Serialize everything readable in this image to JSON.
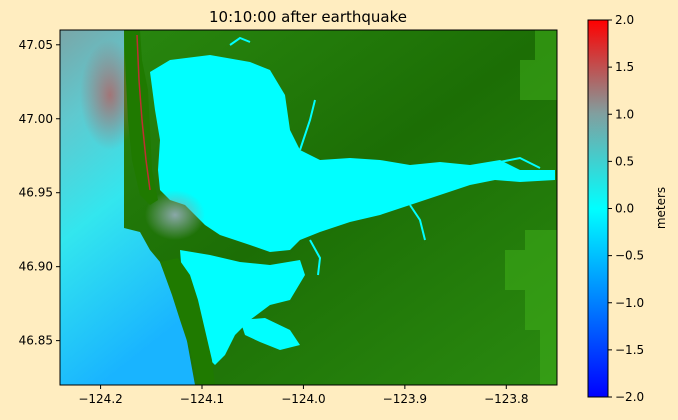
{
  "figure": {
    "title": "10:10:00 after earthquake",
    "background_color": "#ffedc0"
  },
  "map": {
    "x_ticks": [
      {
        "value": -124.2,
        "label": "−124.2"
      },
      {
        "value": -124.1,
        "label": "−124.1"
      },
      {
        "value": -124.0,
        "label": "−124.0"
      },
      {
        "value": -123.9,
        "label": "−123.9"
      },
      {
        "value": -123.8,
        "label": "−123.8"
      }
    ],
    "y_ticks": [
      {
        "value": 47.05,
        "label": "47.05"
      },
      {
        "value": 47.0,
        "label": "47.00"
      },
      {
        "value": 46.95,
        "label": "46.95"
      },
      {
        "value": 46.9,
        "label": "46.90"
      },
      {
        "value": 46.85,
        "label": "46.85"
      }
    ],
    "xlim": [
      -124.24,
      -123.75
    ],
    "ylim": [
      46.82,
      47.06
    ],
    "land_color": "#1f7a00",
    "land_highlight_color": "#3fae1a",
    "water_color": "#00ffff"
  },
  "colorbar": {
    "label": "meters",
    "range": [
      -2.0,
      2.0
    ],
    "ticks": [
      {
        "value": 2.0,
        "label": "2.0"
      },
      {
        "value": 1.5,
        "label": "1.5"
      },
      {
        "value": 1.0,
        "label": "1.0"
      },
      {
        "value": 0.5,
        "label": "0.5"
      },
      {
        "value": 0.0,
        "label": "0.0"
      },
      {
        "value": -0.5,
        "label": "−0.5"
      },
      {
        "value": -1.0,
        "label": "−1.0"
      },
      {
        "value": -1.5,
        "label": "−1.5"
      },
      {
        "value": -2.0,
        "label": "−2.0"
      }
    ],
    "colors": [
      "#0000ff",
      "#0080ff",
      "#00ffff",
      "#80a0a0",
      "#ff0000"
    ]
  }
}
